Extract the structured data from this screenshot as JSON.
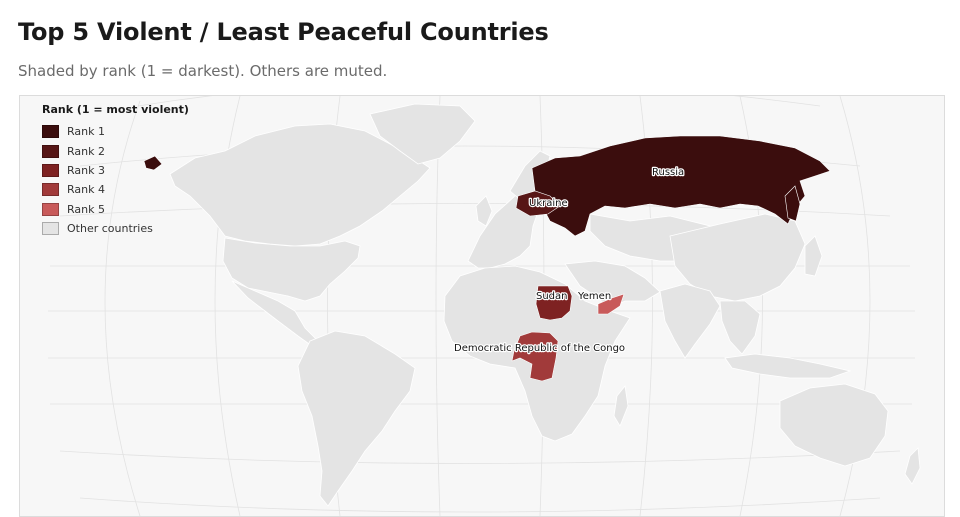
{
  "header": {
    "title": "Top 5 Violent / Least Peaceful Countries",
    "subtitle": "Shaded by rank (1 = darkest). Others are muted."
  },
  "legend": {
    "title": "Rank (1 = most violent)",
    "items": [
      {
        "label": "Rank 1",
        "color": "#3b0d0d"
      },
      {
        "label": "Rank 2",
        "color": "#571616"
      },
      {
        "label": "Rank 3",
        "color": "#7e2222"
      },
      {
        "label": "Rank 4",
        "color": "#a13a3a"
      },
      {
        "label": "Rank 5",
        "color": "#c85a5a"
      },
      {
        "label": "Other countries",
        "color": "#e4e4e4"
      }
    ]
  },
  "countries": [
    {
      "name": "Russia",
      "rank": 1
    },
    {
      "name": "Ukraine",
      "rank": 2
    },
    {
      "name": "Sudan",
      "rank": 3
    },
    {
      "name": "Democratic Republic of the Congo",
      "rank": 4
    },
    {
      "name": "Yemen",
      "rank": 5
    }
  ],
  "colors": {
    "land": "#e4e4e4",
    "ocean": "#f7f7f7",
    "graticule": "#e2e2e2",
    "border": "#ffffff"
  }
}
